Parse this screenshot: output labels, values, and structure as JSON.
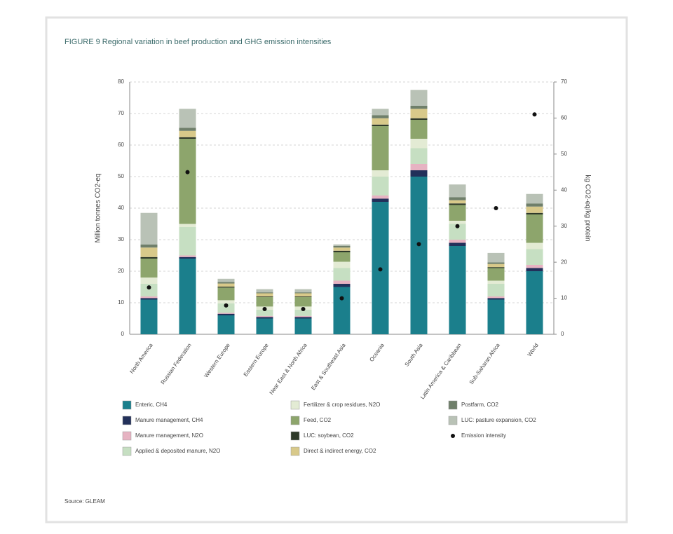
{
  "chart_data": {
    "type": "stacked_bar",
    "title": "FIGURE 9 Regional variation in beef production and GHG emission intensities",
    "source": "Source: GLEAM",
    "ylabel": "Million tonnes CO2-eq",
    "y2label": "kg CO2-eq/kg protein",
    "categories": [
      "North America",
      "Russian Federation",
      "Western Europe",
      "Eastern Europe",
      "Near East & North Africa",
      "East & Southeast Asia",
      "Oceania",
      "South Asia",
      "Latin America & Caribbean",
      "Sub-Saharan Africa",
      "World"
    ],
    "ylim": [
      0,
      80
    ],
    "yticks": [
      0,
      10,
      20,
      30,
      40,
      50,
      60,
      70,
      80
    ],
    "y2lim": [
      0,
      70
    ],
    "y2ticks": [
      0,
      10,
      20,
      30,
      40,
      50,
      60,
      70
    ],
    "grid": true,
    "series": [
      {
        "name": "Enteric, CH4",
        "color": "#1b7f8c",
        "values": [
          11,
          24,
          6,
          5,
          5,
          15,
          42,
          50,
          28,
          11,
          20
        ]
      },
      {
        "name": "Manure management, CH4",
        "color": "#22305a",
        "values": [
          0.5,
          0.5,
          0.5,
          0.5,
          0.5,
          1,
          1,
          2,
          1,
          0.5,
          1
        ]
      },
      {
        "name": "Manure management, N2O",
        "color": "#e6b3c2",
        "values": [
          0.5,
          0.5,
          0.3,
          0.3,
          0.3,
          1,
          1,
          2,
          1,
          0.5,
          1
        ]
      },
      {
        "name": "Applied & deposited manure, N2O",
        "color": "#c6dfc2",
        "values": [
          4,
          9,
          3,
          2,
          2,
          4,
          6,
          5,
          5,
          4,
          5
        ]
      },
      {
        "name": "Fertilizer & crop residues, N2O",
        "color": "#e3ebd4",
        "values": [
          2,
          1,
          1,
          1,
          1,
          2,
          2,
          3,
          1,
          1,
          2
        ]
      },
      {
        "name": "Feed, CO2",
        "color": "#8da56c",
        "values": [
          6,
          27,
          4,
          3,
          3,
          3,
          14,
          6,
          5,
          4,
          9
        ]
      },
      {
        "name": "LUC: soybean, CO2",
        "color": "#2f3a2a",
        "values": [
          0.5,
          0.5,
          0.3,
          0.2,
          0.2,
          0.5,
          0.5,
          0.5,
          0.5,
          0.3,
          0.5
        ]
      },
      {
        "name": "Direct & indirect energy, CO2",
        "color": "#d8c98a",
        "values": [
          3,
          2,
          1,
          1,
          1,
          1,
          2,
          3,
          1,
          1,
          2
        ]
      },
      {
        "name": "Postfarm, CO2",
        "color": "#6f7f6a",
        "values": [
          1,
          1,
          0.5,
          0.3,
          0.3,
          0.5,
          1,
          1,
          1,
          0.5,
          1
        ]
      },
      {
        "name": "LUC: pasture expansion, CO2",
        "color": "#b9c2b6",
        "values": [
          10,
          6,
          1,
          1,
          1,
          0.5,
          2,
          5,
          4,
          3,
          3
        ]
      },
      {
        "name": "Emission intensity",
        "color": "#111111",
        "axis": "y2",
        "values": [
          13,
          45,
          8,
          7,
          7,
          10,
          18,
          25,
          30,
          35,
          61
        ]
      }
    ]
  }
}
